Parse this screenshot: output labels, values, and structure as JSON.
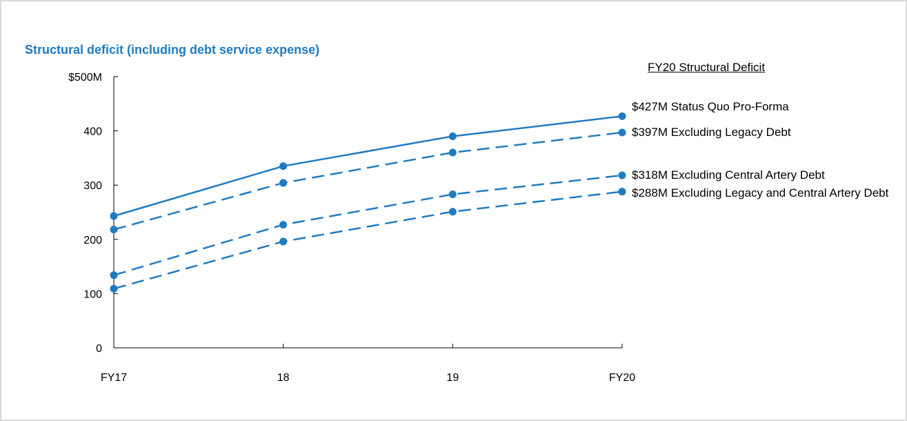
{
  "chart_data": {
    "type": "line",
    "title": "Structural deficit (including debt service expense)",
    "categories": [
      "FY17",
      "18",
      "19",
      "FY20"
    ],
    "y_ticks": [
      "0",
      "100",
      "200",
      "300",
      "400",
      "$500M"
    ],
    "ylim": [
      0,
      500
    ],
    "xlabel": "",
    "ylabel": "",
    "grid": false,
    "legend_title": "FY20 Structural Deficit",
    "series": [
      {
        "name": "$427M Status Quo Pro-Forma",
        "style": "solid",
        "values": [
          243,
          335,
          390,
          427
        ]
      },
      {
        "name": "$397M Excluding Legacy Debt",
        "style": "dashed",
        "values": [
          218,
          304,
          360,
          397
        ]
      },
      {
        "name": "$318M Excluding Central Artery Debt",
        "style": "dashed",
        "values": [
          134,
          227,
          283,
          318
        ]
      },
      {
        "name": "$288M Excluding Legacy and Central Artery Debt",
        "style": "dashed",
        "values": [
          109,
          196,
          251,
          288
        ]
      }
    ],
    "line_color": "#1f7bc1"
  }
}
